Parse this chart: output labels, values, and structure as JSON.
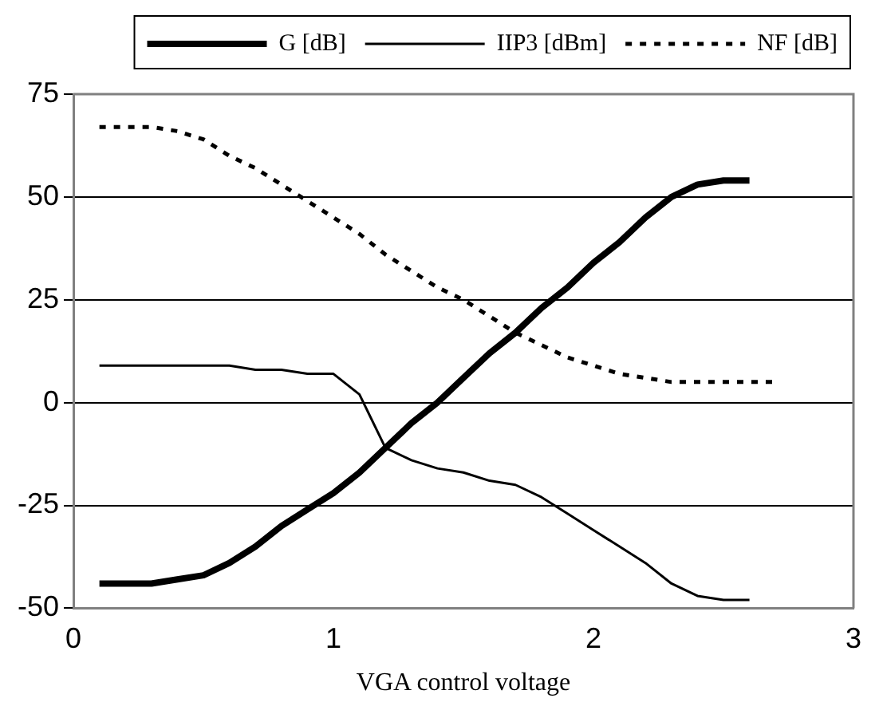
{
  "chart_data": {
    "type": "line",
    "xlabel": "VGA control voltage",
    "xlim": [
      0,
      3
    ],
    "xticks": [
      0,
      1,
      2,
      3
    ],
    "ylim": [
      -50,
      75
    ],
    "yticks": [
      -50,
      -25,
      0,
      25,
      50,
      75
    ],
    "grid": "y",
    "legend": "top",
    "marker": "none",
    "series": [
      {
        "name": "G [dB]",
        "color": "#000000",
        "line_style": "solid",
        "x": [
          0.1,
          0.2,
          0.3,
          0.4,
          0.5,
          0.6,
          0.7,
          0.8,
          0.9,
          1.0,
          1.1,
          1.2,
          1.3,
          1.4,
          1.5,
          1.6,
          1.7,
          1.8,
          1.9,
          2.0,
          2.1,
          2.2,
          2.3,
          2.4,
          2.5,
          2.6
        ],
        "values": [
          -44,
          -44,
          -44,
          -43,
          -42,
          -39,
          -35,
          -30,
          -26,
          -22,
          -17,
          -11,
          -5,
          0,
          6,
          12,
          17,
          23,
          28,
          34,
          39,
          45,
          50,
          53,
          54,
          54
        ]
      },
      {
        "name": "IIP3 [dBm]",
        "color": "#000000",
        "line_style": "solid",
        "x": [
          0.1,
          0.2,
          0.3,
          0.4,
          0.5,
          0.6,
          0.7,
          0.8,
          0.9,
          1.0,
          1.1,
          1.2,
          1.3,
          1.4,
          1.5,
          1.6,
          1.7,
          1.8,
          1.9,
          2.0,
          2.1,
          2.2,
          2.3,
          2.4,
          2.5,
          2.6
        ],
        "values": [
          9,
          9,
          9,
          9,
          9,
          9,
          8,
          8,
          7,
          7,
          2,
          -11,
          -14,
          -16,
          -17,
          -19,
          -20,
          -23,
          -27,
          -31,
          -35,
          -39,
          -44,
          -47,
          -48,
          -48
        ]
      },
      {
        "name": "NF [dB]",
        "color": "#000000",
        "line_style": "dotted",
        "x": [
          0.1,
          0.2,
          0.3,
          0.4,
          0.5,
          0.6,
          0.7,
          0.8,
          0.9,
          1.0,
          1.1,
          1.2,
          1.3,
          1.4,
          1.5,
          1.6,
          1.7,
          1.8,
          1.9,
          2.0,
          2.1,
          2.2,
          2.3,
          2.4,
          2.5,
          2.6,
          2.7
        ],
        "values": [
          67,
          67,
          67,
          66,
          64,
          60,
          57,
          53,
          49,
          45,
          41,
          36,
          32,
          28,
          25,
          21,
          17,
          14,
          11,
          9,
          7,
          6,
          5,
          5,
          5,
          5,
          5
        ]
      }
    ]
  }
}
